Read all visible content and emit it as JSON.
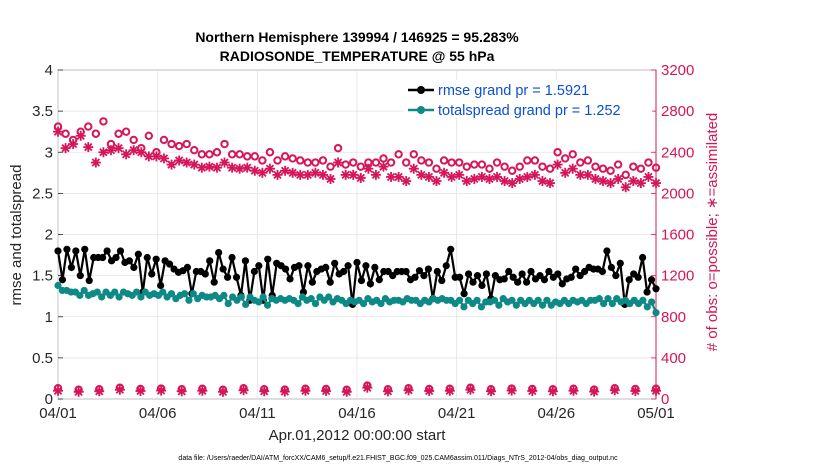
{
  "chart_data": {
    "type": "line",
    "title_line1": "Northern Hemisphere 139994 / 146925 = 95.283%",
    "title_line2": "RADIOSONDE_TEMPERATURE @ 55 hPa",
    "xlabel": "Apr.01,2012 00:00:00 start",
    "ylabel_left": "rmse and totalspread",
    "ylabel_right": "# of obs: o=possible; ∗=assimilated",
    "x_ticks": [
      "04/01",
      "04/06",
      "04/11",
      "04/16",
      "04/21",
      "04/26",
      "05/01"
    ],
    "x_range_days": [
      0,
      30
    ],
    "y_left_range": [
      0,
      4
    ],
    "y_left_ticks": [
      "0",
      "0.5",
      "1",
      "1.5",
      "2",
      "2.5",
      "3",
      "3.5",
      "4"
    ],
    "y_right_range": [
      0,
      3200
    ],
    "y_right_ticks": [
      "0",
      "400",
      "800",
      "1200",
      "1600",
      "2000",
      "2400",
      "2800",
      "3200"
    ],
    "legend": [
      {
        "label": "rmse grand pr = 1.5921",
        "color": "#000000"
      },
      {
        "label": "totalspread grand pr = 1.252",
        "color": "#0d8a86"
      }
    ],
    "series": [
      {
        "name": "rmse",
        "axis": "left",
        "color": "#000000",
        "values": [
          1.8,
          1.45,
          1.82,
          1.6,
          1.8,
          1.5,
          1.82,
          1.44,
          1.72,
          1.72,
          1.72,
          1.8,
          1.68,
          1.72,
          1.8,
          1.66,
          1.68,
          1.6,
          1.76,
          1.3,
          1.72,
          1.52,
          1.7,
          1.38,
          1.68,
          1.64,
          1.58,
          1.54,
          1.56,
          1.6,
          1.28,
          1.55,
          1.55,
          1.52,
          1.68,
          1.42,
          1.78,
          1.58,
          1.48,
          1.72,
          1.48,
          1.26,
          1.68,
          1.2,
          1.55,
          1.62,
          1.2,
          1.7,
          1.26,
          1.65,
          1.62,
          1.58,
          1.46,
          1.6,
          1.62,
          1.3,
          1.62,
          1.42,
          1.55,
          1.58,
          1.6,
          1.42,
          1.65,
          1.52,
          1.55,
          1.62,
          1.15,
          1.66,
          1.44,
          1.62,
          1.4,
          1.6,
          1.45,
          1.55,
          1.55,
          1.5,
          1.55,
          1.55,
          1.55,
          1.45,
          1.48,
          1.56,
          1.5,
          1.58,
          1.22,
          1.55,
          1.44,
          1.62,
          1.82,
          1.48,
          1.48,
          1.28,
          1.52,
          1.42,
          1.5,
          1.38,
          1.52,
          1.22,
          1.5,
          1.45,
          1.46,
          1.55,
          1.48,
          1.42,
          1.52,
          1.42,
          1.55,
          1.46,
          1.5,
          1.45,
          1.55,
          1.48,
          1.52,
          1.4,
          1.46,
          1.48,
          1.58,
          1.5,
          1.55,
          1.6,
          1.58,
          1.58,
          1.55,
          1.8,
          1.6,
          1.5,
          1.65,
          1.15,
          1.45,
          1.52,
          1.48,
          1.72,
          1.3,
          1.45,
          1.34
        ]
      },
      {
        "name": "totalspread",
        "axis": "left",
        "color": "#0d8a86",
        "values": [
          1.38,
          1.32,
          1.32,
          1.3,
          1.3,
          1.26,
          1.32,
          1.26,
          1.28,
          1.3,
          1.24,
          1.3,
          1.26,
          1.3,
          1.24,
          1.3,
          1.28,
          1.26,
          1.3,
          1.24,
          1.3,
          1.26,
          1.28,
          1.26,
          1.3,
          1.24,
          1.28,
          1.22,
          1.26,
          1.28,
          1.2,
          1.28,
          1.22,
          1.26,
          1.24,
          1.24,
          1.26,
          1.22,
          1.26,
          1.16,
          1.24,
          1.2,
          1.24,
          1.15,
          1.24,
          1.2,
          1.18,
          1.24,
          1.14,
          1.22,
          1.2,
          1.22,
          1.2,
          1.22,
          1.2,
          1.16,
          1.24,
          1.2,
          1.22,
          1.16,
          1.24,
          1.2,
          1.24,
          1.18,
          1.22,
          1.2,
          1.16,
          1.2,
          1.18,
          1.2,
          1.16,
          1.22,
          1.18,
          1.2,
          1.16,
          1.22,
          1.18,
          1.2,
          1.2,
          1.18,
          1.22,
          1.2,
          1.2,
          1.16,
          1.2,
          1.18,
          1.22,
          1.2,
          1.22,
          1.2,
          1.2,
          1.16,
          1.2,
          1.12,
          1.2,
          1.16,
          1.2,
          1.12,
          1.18,
          1.18,
          1.2,
          1.14,
          1.22,
          1.18,
          1.2,
          1.14,
          1.2,
          1.16,
          1.2,
          1.16,
          1.2,
          1.14,
          1.2,
          1.14,
          1.18,
          1.16,
          1.2,
          1.16,
          1.2,
          1.18,
          1.2,
          1.16,
          1.2,
          1.2,
          1.22,
          1.16,
          1.22,
          1.16,
          1.22,
          1.18,
          1.2,
          1.16,
          1.2,
          1.16,
          1.2,
          1.12,
          1.18,
          1.05
        ]
      },
      {
        "name": "obs possible",
        "axis": "right",
        "color": "#d6155a",
        "marker": "circle",
        "values": [
          2650,
          2580,
          2520,
          2600,
          2650,
          2580,
          2700,
          2480,
          2580,
          2600,
          2520,
          2440,
          2560,
          2400,
          2520,
          2480,
          2460,
          2480,
          2420,
          2380,
          2380,
          2400,
          2480,
          2380,
          2380,
          2360,
          2360,
          2320,
          2400,
          2320,
          2360,
          2340,
          2320,
          2300,
          2300,
          2320,
          2260,
          2440,
          2280,
          2300,
          2260,
          2300,
          2300,
          2340,
          2300,
          2380,
          2300,
          2380,
          2320,
          2300,
          2240,
          2320,
          2300,
          2300,
          2260,
          2280,
          2280,
          2240,
          2300,
          2260,
          2220,
          2260,
          2320,
          2320,
          2260,
          2240,
          2400,
          2340,
          2380,
          2300,
          2320,
          2260,
          2240,
          2220,
          2280,
          2180,
          2260,
          2240,
          2300,
          2250
        ]
      },
      {
        "name": "obs assimilated",
        "axis": "right",
        "color": "#d6155a",
        "marker": "asterisk",
        "values": [
          2600,
          2440,
          2480,
          2560,
          2450,
          2300,
          2400,
          2420,
          2440,
          2380,
          2420,
          2400,
          2360,
          2360,
          2340,
          2280,
          2320,
          2300,
          2280,
          2250,
          2260,
          2250,
          2300,
          2250,
          2240,
          2250,
          2220,
          2200,
          2240,
          2180,
          2220,
          2200,
          2180,
          2180,
          2200,
          2180,
          2140,
          2300,
          2180,
          2180,
          2150,
          2240,
          2180,
          2260,
          2160,
          2160,
          2120,
          2240,
          2180,
          2160,
          2120,
          2200,
          2160,
          2180,
          2120,
          2140,
          2160,
          2140,
          2160,
          2120,
          2100,
          2140,
          2160,
          2180,
          2120,
          2100,
          2280,
          2200,
          2240,
          2180,
          2180,
          2140,
          2120,
          2100,
          2140,
          2060,
          2120,
          2100,
          2160,
          2100
        ]
      },
      {
        "name": "obs possible low",
        "axis": "right",
        "color": "#d6155a",
        "marker": "circle",
        "values": [
          105,
          90,
          95,
          110,
          98,
          102,
          95,
          100,
          90,
          105,
          95,
          92,
          100,
          98,
          90,
          130,
          95,
          105,
          98,
          100,
          110,
          95,
          102,
          98,
          95,
          100,
          92,
          105,
          98,
          100
        ]
      },
      {
        "name": "obs assimilated low",
        "axis": "right",
        "color": "#d6155a",
        "marker": "asterisk",
        "values": [
          80,
          70,
          75,
          90,
          78,
          82,
          75,
          80,
          70,
          85,
          75,
          72,
          80,
          78,
          70,
          110,
          75,
          85,
          78,
          80,
          90,
          75,
          82,
          78,
          75,
          80,
          72,
          85,
          78,
          80
        ]
      }
    ]
  },
  "footer": {
    "data_file": "data file: /Users/raeder/DAI/ATM_forcXX/CAM6_setup/f.e21.FHIST_BGC.f09_025.CAM6assim.011/Diags_NTrS_2012-04/obs_diag_output.nc"
  }
}
